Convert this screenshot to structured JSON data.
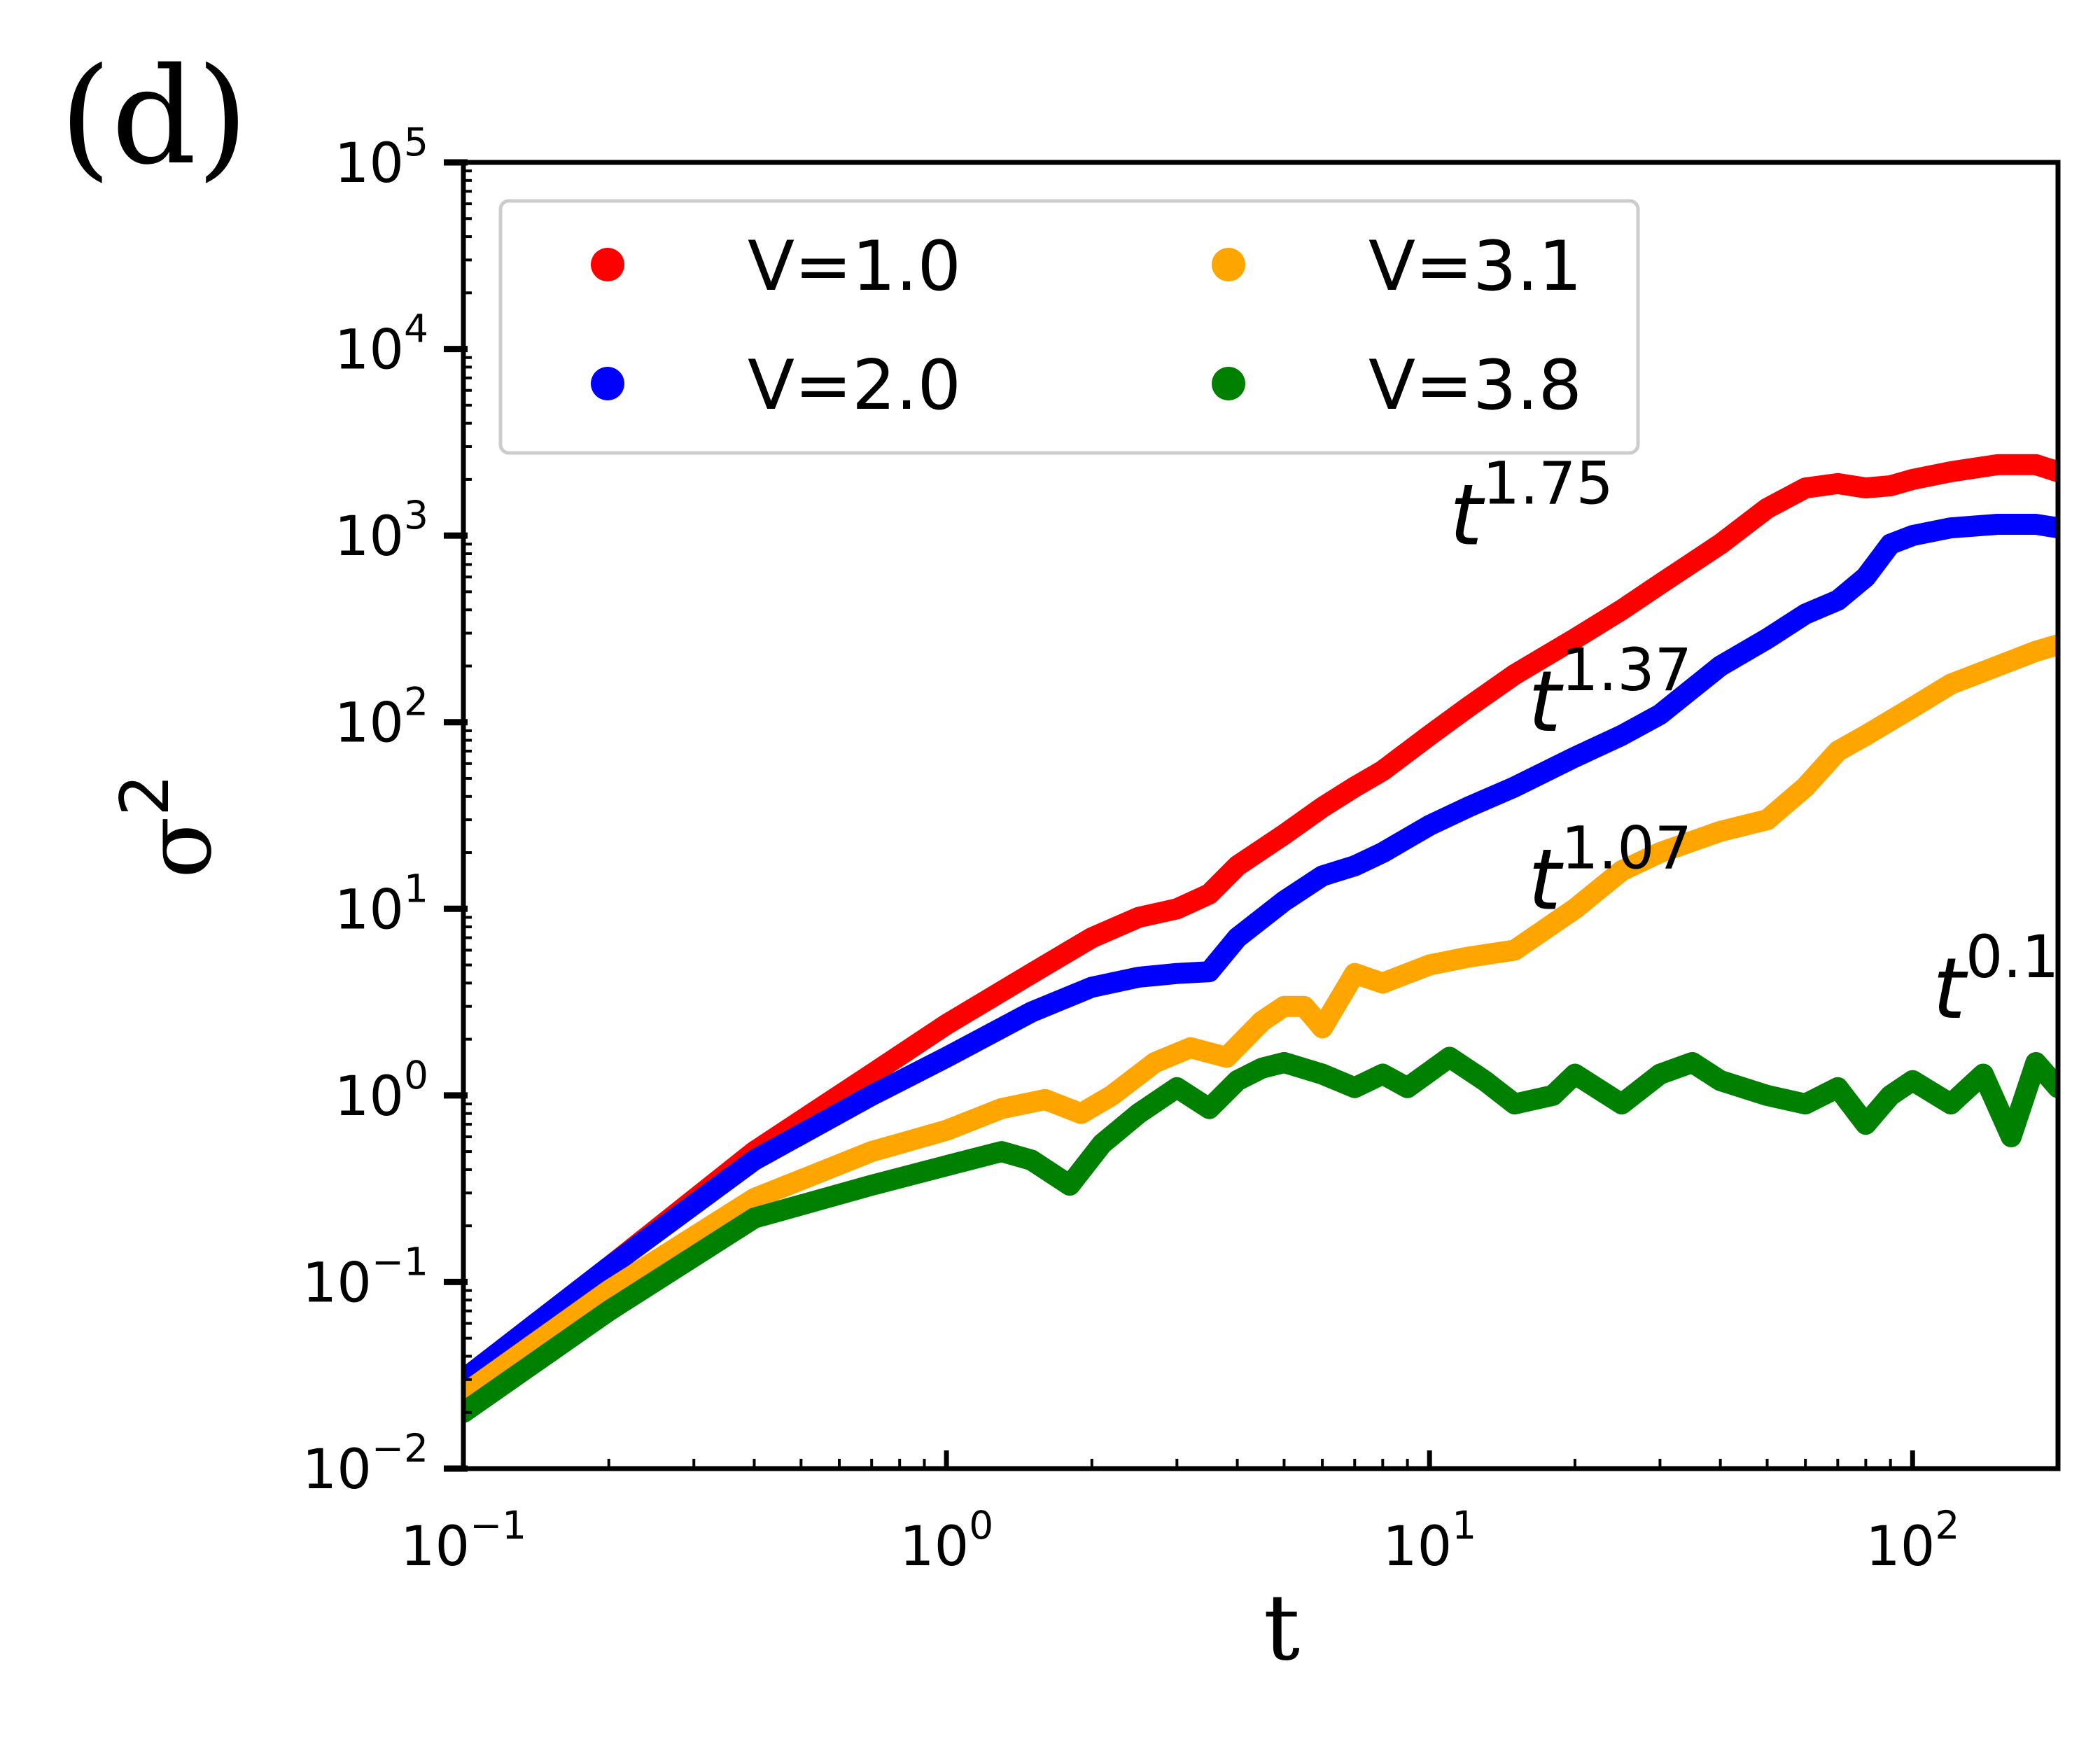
{
  "panel_label": "(d)",
  "chart_data": {
    "type": "line",
    "xscale": "log",
    "yscale": "log",
    "xlabel": "t",
    "ylabel": "σ",
    "ylabel_exponent": "2",
    "xlim": [
      0.1,
      200
    ],
    "ylim": [
      0.01,
      100000
    ],
    "x_ticks": [
      {
        "value": 0.1,
        "base": "10",
        "exp": "−1"
      },
      {
        "value": 1,
        "base": "10",
        "exp": "0"
      },
      {
        "value": 10,
        "base": "10",
        "exp": "1"
      },
      {
        "value": 100,
        "base": "10",
        "exp": "2"
      }
    ],
    "y_ticks": [
      {
        "value": 0.01,
        "base": "10",
        "exp": "−2"
      },
      {
        "value": 0.1,
        "base": "10",
        "exp": "−1"
      },
      {
        "value": 1,
        "base": "10",
        "exp": "0"
      },
      {
        "value": 10,
        "base": "10",
        "exp": "1"
      },
      {
        "value": 100,
        "base": "10",
        "exp": "2"
      },
      {
        "value": 1000,
        "base": "10",
        "exp": "3"
      },
      {
        "value": 10000,
        "base": "10",
        "exp": "4"
      },
      {
        "value": 100000,
        "base": "10",
        "exp": "5"
      }
    ],
    "legend": {
      "placement": "upper-left",
      "columns": 2
    },
    "series": [
      {
        "name": "V=1.0",
        "color": "#ff0000",
        "points": [
          [
            0.1,
            0.03
          ],
          [
            0.2,
            0.12
          ],
          [
            0.4,
            0.5
          ],
          [
            0.7,
            1.3
          ],
          [
            1.0,
            2.4
          ],
          [
            1.5,
            4.5
          ],
          [
            2.0,
            7
          ],
          [
            2.5,
            9
          ],
          [
            3.0,
            10
          ],
          [
            3.5,
            12
          ],
          [
            4.0,
            17
          ],
          [
            5.0,
            25
          ],
          [
            6.0,
            35
          ],
          [
            7.0,
            45
          ],
          [
            8.0,
            55
          ],
          [
            10.0,
            85
          ],
          [
            12.0,
            120
          ],
          [
            15.0,
            180
          ],
          [
            20.0,
            280
          ],
          [
            25.0,
            400
          ],
          [
            30.0,
            550
          ],
          [
            40.0,
            900
          ],
          [
            50.0,
            1400
          ],
          [
            60.0,
            1800
          ],
          [
            70.0,
            1900
          ],
          [
            80.0,
            1800
          ],
          [
            90.0,
            1850
          ],
          [
            100.0,
            2000
          ],
          [
            120.0,
            2200
          ],
          [
            150.0,
            2400
          ],
          [
            180.0,
            2400
          ],
          [
            200.0,
            2200
          ]
        ]
      },
      {
        "name": "V=2.0",
        "color": "#0000ff",
        "points": [
          [
            0.1,
            0.03
          ],
          [
            0.2,
            0.12
          ],
          [
            0.4,
            0.45
          ],
          [
            0.7,
            1.0
          ],
          [
            1.0,
            1.6
          ],
          [
            1.5,
            2.8
          ],
          [
            2.0,
            3.8
          ],
          [
            2.5,
            4.3
          ],
          [
            3.0,
            4.5
          ],
          [
            3.5,
            4.6
          ],
          [
            4.0,
            7
          ],
          [
            5.0,
            11
          ],
          [
            6.0,
            15
          ],
          [
            7.0,
            17
          ],
          [
            8.0,
            20
          ],
          [
            10.0,
            28
          ],
          [
            12.0,
            35
          ],
          [
            15.0,
            45
          ],
          [
            20.0,
            65
          ],
          [
            25.0,
            85
          ],
          [
            30.0,
            110
          ],
          [
            40.0,
            200
          ],
          [
            50.0,
            280
          ],
          [
            60.0,
            380
          ],
          [
            70.0,
            450
          ],
          [
            80.0,
            600
          ],
          [
            90.0,
            900
          ],
          [
            100.0,
            1000
          ],
          [
            120.0,
            1100
          ],
          [
            150.0,
            1150
          ],
          [
            180.0,
            1150
          ],
          [
            200.0,
            1100
          ]
        ]
      },
      {
        "name": "V=3.1",
        "color": "#ffa500",
        "points": [
          [
            0.1,
            0.025
          ],
          [
            0.2,
            0.09
          ],
          [
            0.4,
            0.28
          ],
          [
            0.7,
            0.5
          ],
          [
            1.0,
            0.65
          ],
          [
            1.3,
            0.85
          ],
          [
            1.6,
            0.95
          ],
          [
            1.9,
            0.8
          ],
          [
            2.2,
            1.0
          ],
          [
            2.7,
            1.5
          ],
          [
            3.2,
            1.8
          ],
          [
            3.8,
            1.6
          ],
          [
            4.5,
            2.5
          ],
          [
            5.0,
            3.0
          ],
          [
            5.5,
            3.0
          ],
          [
            6.0,
            2.3
          ],
          [
            7.0,
            4.5
          ],
          [
            8.0,
            4.0
          ],
          [
            9.0,
            4.5
          ],
          [
            10.0,
            5
          ],
          [
            12.0,
            5.5
          ],
          [
            15.0,
            6
          ],
          [
            20.0,
            10
          ],
          [
            25.0,
            16
          ],
          [
            30.0,
            20
          ],
          [
            40.0,
            26
          ],
          [
            50.0,
            30
          ],
          [
            60.0,
            45
          ],
          [
            70.0,
            70
          ],
          [
            80.0,
            85
          ],
          [
            100.0,
            120
          ],
          [
            120.0,
            160
          ],
          [
            150.0,
            200
          ],
          [
            180.0,
            240
          ],
          [
            200.0,
            260
          ]
        ]
      },
      {
        "name": "V=3.8",
        "color": "#008000",
        "points": [
          [
            0.1,
            0.02
          ],
          [
            0.2,
            0.07
          ],
          [
            0.4,
            0.22
          ],
          [
            0.7,
            0.33
          ],
          [
            1.0,
            0.42
          ],
          [
            1.3,
            0.5
          ],
          [
            1.5,
            0.45
          ],
          [
            1.8,
            0.33
          ],
          [
            2.1,
            0.55
          ],
          [
            2.5,
            0.8
          ],
          [
            3.0,
            1.1
          ],
          [
            3.5,
            0.85
          ],
          [
            4.0,
            1.2
          ],
          [
            4.5,
            1.4
          ],
          [
            5.0,
            1.5
          ],
          [
            6.0,
            1.3
          ],
          [
            7.0,
            1.1
          ],
          [
            8.0,
            1.3
          ],
          [
            9.0,
            1.1
          ],
          [
            11.0,
            1.6
          ],
          [
            13.0,
            1.2
          ],
          [
            15.0,
            0.9
          ],
          [
            18.0,
            1.0
          ],
          [
            20.0,
            1.3
          ],
          [
            25.0,
            0.9
          ],
          [
            30.0,
            1.3
          ],
          [
            35.0,
            1.5
          ],
          [
            40.0,
            1.2
          ],
          [
            50.0,
            1.0
          ],
          [
            60.0,
            0.9
          ],
          [
            70.0,
            1.1
          ],
          [
            80.0,
            0.7
          ],
          [
            90.0,
            1.0
          ],
          [
            100.0,
            1.2
          ],
          [
            120.0,
            0.9
          ],
          [
            140.0,
            1.3
          ],
          [
            160.0,
            0.6
          ],
          [
            180.0,
            1.5
          ],
          [
            200.0,
            1.1
          ]
        ]
      }
    ],
    "annotations": [
      {
        "base": "t",
        "exp": "1.75",
        "x": 11,
        "y": 900
      },
      {
        "base": "t",
        "exp": "1.37",
        "x": 16,
        "y": 90
      },
      {
        "base": "t",
        "exp": "1.07",
        "x": 16,
        "y": 10
      },
      {
        "base": "t",
        "exp": "0.1",
        "x": 110,
        "y": 2.6
      }
    ]
  }
}
